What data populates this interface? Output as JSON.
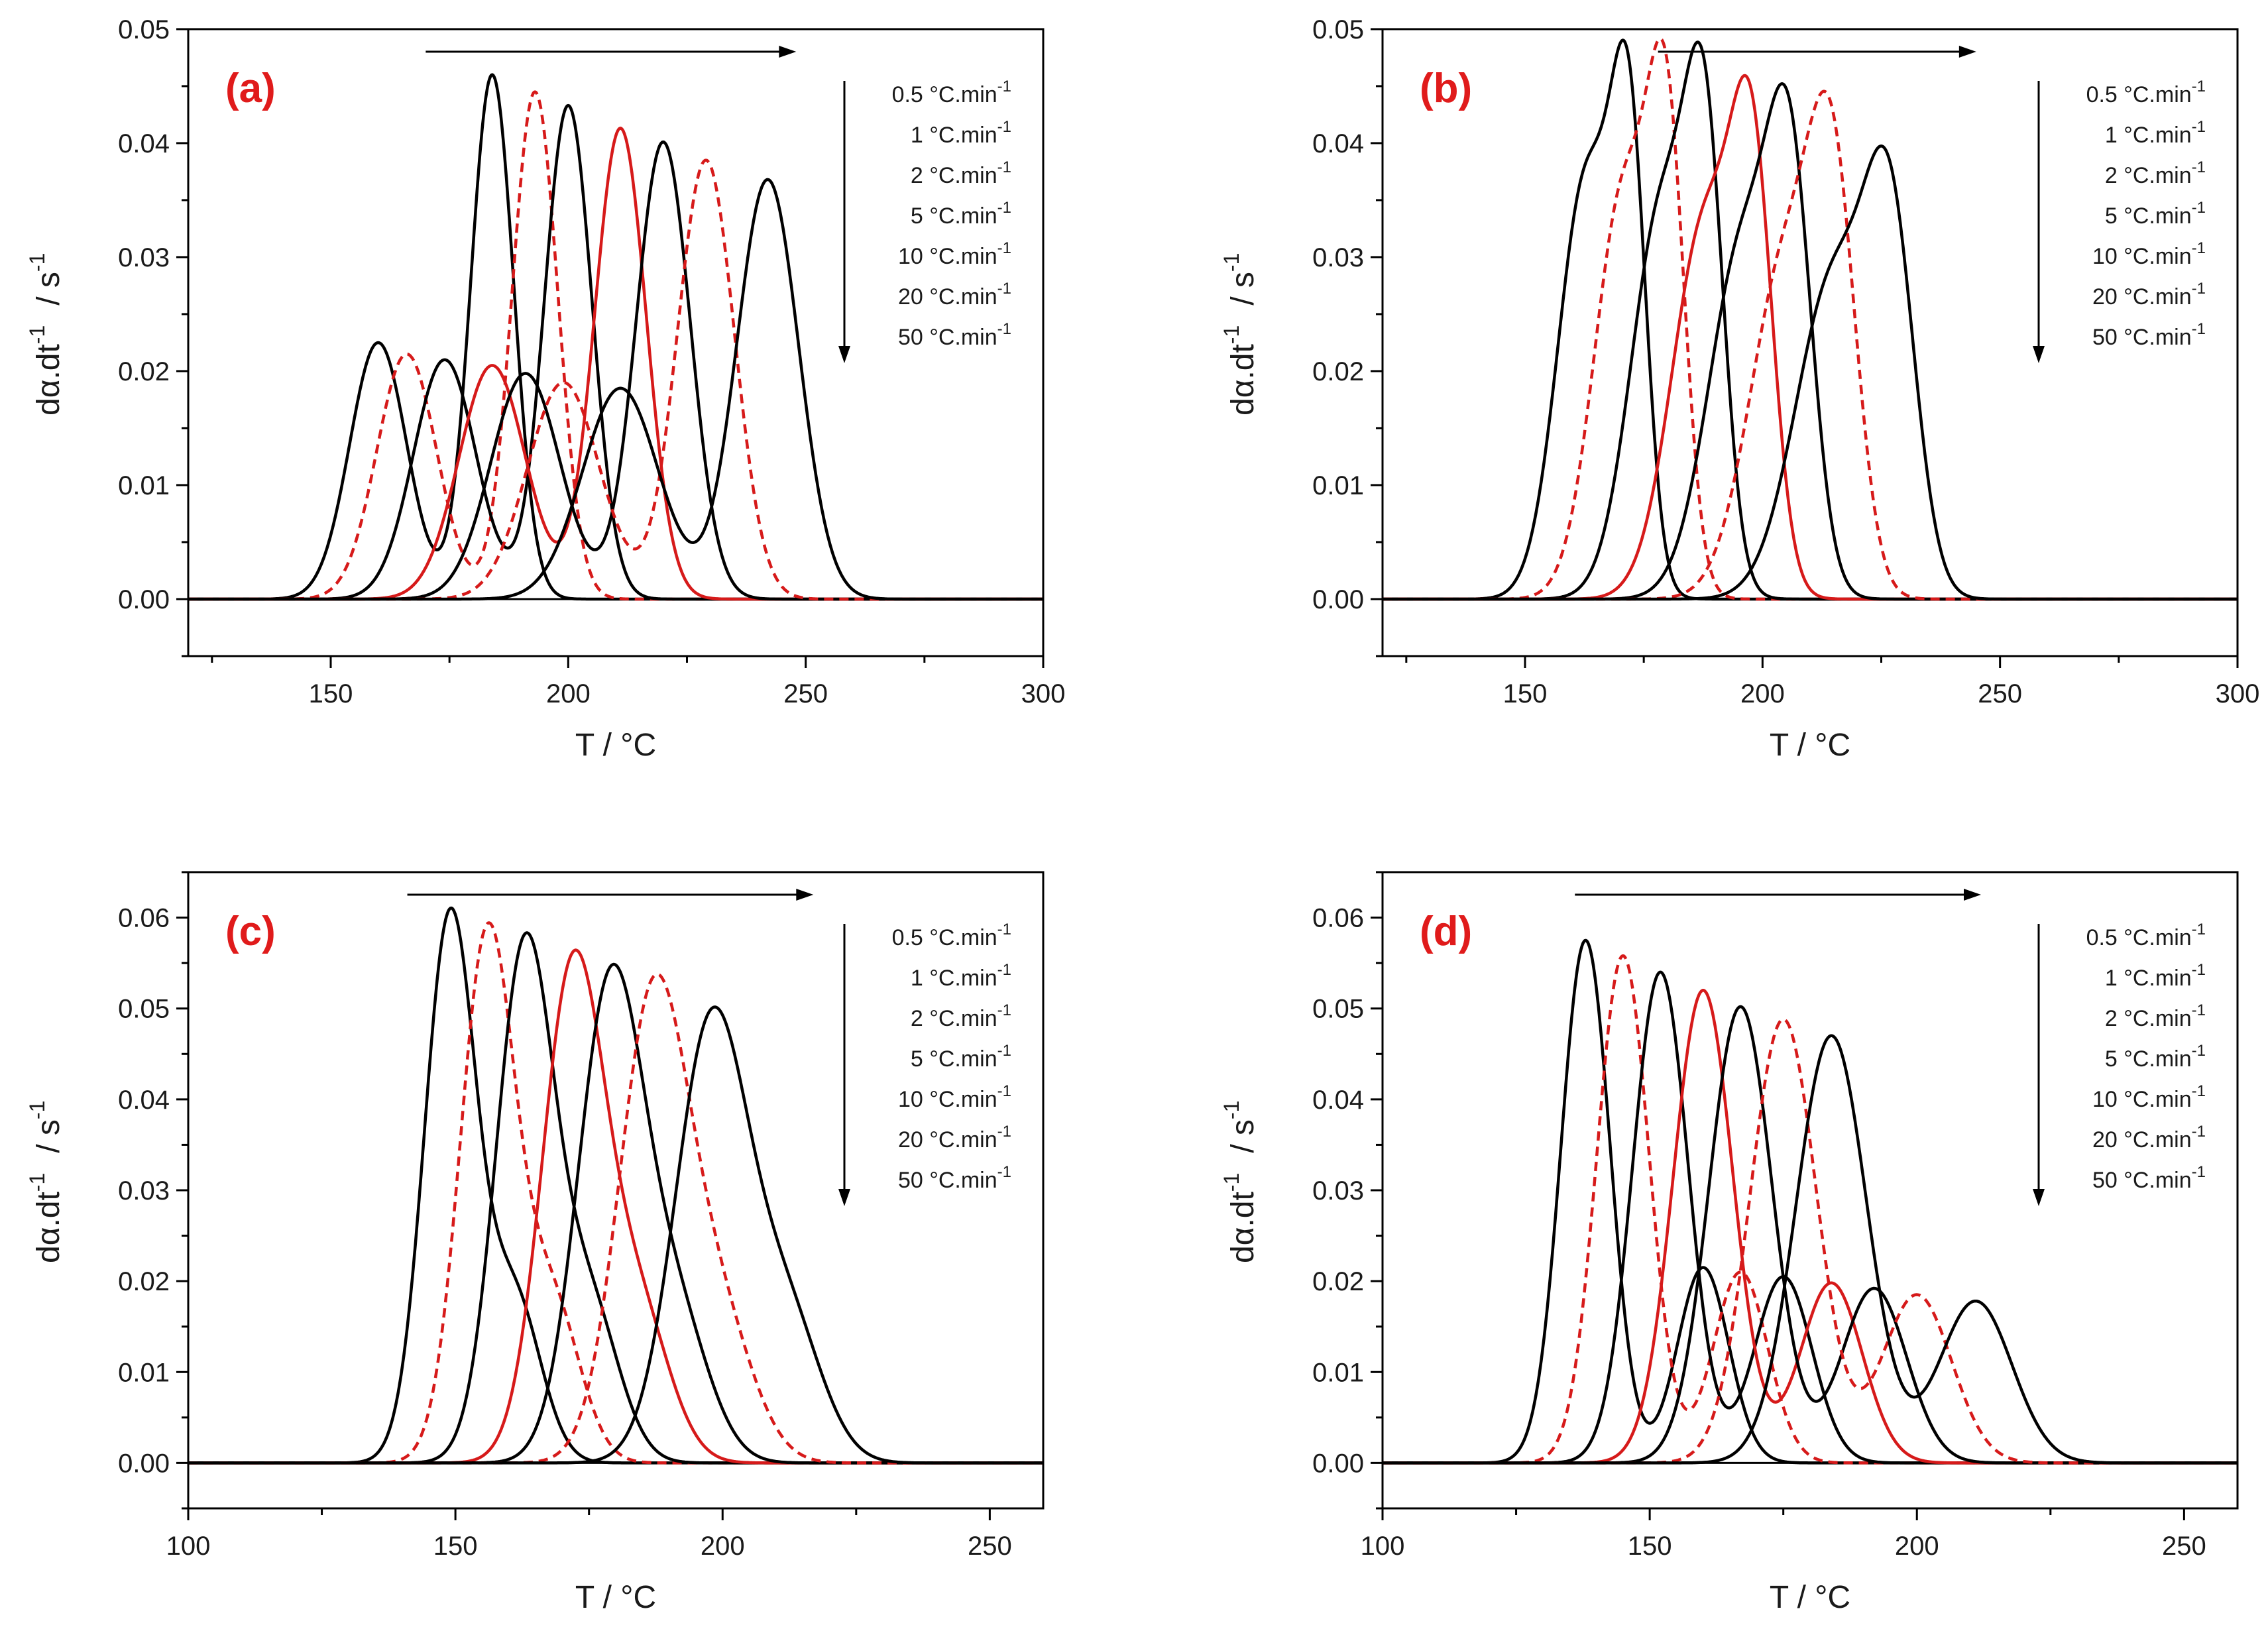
{
  "colors": {
    "black": "#000000",
    "red": "#d61a1a",
    "panel_label": "#e01b1b"
  },
  "chart_data": [
    {
      "type": "line",
      "panel_label": "(a)",
      "xlabel": "T   /   °C",
      "ylabel": "dα.dt",
      "ylabel_exp": "-1",
      "ylabel_unit": "/   s",
      "ylabel_unit_exp": "-1",
      "xlim": [
        120,
        300
      ],
      "ylim": [
        -0.005,
        0.05
      ],
      "xticks": [
        150,
        200,
        250,
        300
      ],
      "xtick_labels": [
        "150",
        "200",
        "250",
        "300"
      ],
      "yticks": [
        0,
        0.01,
        0.02,
        0.03,
        0.04,
        0.05
      ],
      "ytick_labels": [
        "0.00",
        "0.01",
        "0.02",
        "0.03",
        "0.04",
        "0.05"
      ],
      "arrow_x_range": [
        170,
        248
      ],
      "legend": {
        "entries": [
          "0.5 °C.min",
          "1 °C.min",
          "2 °C.min",
          "5 °C.min",
          "10 °C.min",
          "20 °C.min",
          "50 °C.min"
        ],
        "exponent": "-1"
      },
      "series": [
        {
          "name": "0.5 °C.min-1",
          "color": "black",
          "dash": false,
          "peaks": [
            {
              "h": 0.0225,
              "c": 160,
              "w": 6
            },
            {
              "h": 0.046,
              "c": 184,
              "w": 4.5
            }
          ]
        },
        {
          "name": "1 °C.min-1",
          "color": "red",
          "dash": true,
          "peaks": [
            {
              "h": 0.0215,
              "c": 166,
              "w": 6.3
            },
            {
              "h": 0.0445,
              "c": 193,
              "w": 4.8
            }
          ]
        },
        {
          "name": "2 °C.min-1",
          "color": "black",
          "dash": false,
          "peaks": [
            {
              "h": 0.021,
              "c": 174,
              "w": 6.6
            },
            {
              "h": 0.0433,
              "c": 200,
              "w": 5
            }
          ]
        },
        {
          "name": "5 °C.min-1",
          "color": "red",
          "dash": false,
          "peaks": [
            {
              "h": 0.0205,
              "c": 184,
              "w": 7
            },
            {
              "h": 0.0413,
              "c": 211,
              "w": 5.4
            }
          ]
        },
        {
          "name": "10 °C.min-1",
          "color": "black",
          "dash": false,
          "peaks": [
            {
              "h": 0.0198,
              "c": 191,
              "w": 7.3
            },
            {
              "h": 0.0401,
              "c": 220,
              "w": 5.7
            }
          ]
        },
        {
          "name": "20 °C.min-1",
          "color": "red",
          "dash": true,
          "peaks": [
            {
              "h": 0.019,
              "c": 199,
              "w": 7.6
            },
            {
              "h": 0.0385,
              "c": 229,
              "w": 6
            }
          ]
        },
        {
          "name": "50 °C.min-1",
          "color": "black",
          "dash": false,
          "peaks": [
            {
              "h": 0.0185,
              "c": 211,
              "w": 8
            },
            {
              "h": 0.0368,
              "c": 242,
              "w": 6.5
            }
          ]
        }
      ]
    },
    {
      "type": "line",
      "panel_label": "(b)",
      "xlabel": "T   /   °C",
      "ylabel": "dα.dt",
      "ylabel_exp": "-1",
      "ylabel_unit": "/   s",
      "ylabel_unit_exp": "-1",
      "xlim": [
        120,
        300
      ],
      "ylim": [
        -0.005,
        0.05
      ],
      "xticks": [
        150,
        200,
        250,
        300
      ],
      "xtick_labels": [
        "150",
        "200",
        "250",
        "300"
      ],
      "yticks": [
        0,
        0.01,
        0.02,
        0.03,
        0.04,
        0.05
      ],
      "ytick_labels": [
        "0.00",
        "0.01",
        "0.02",
        "0.03",
        "0.04",
        "0.05"
      ],
      "arrow_x_range": [
        178,
        245
      ],
      "legend": {
        "entries": [
          "0.5 °C.min",
          "1 °C.min",
          "2 °C.min",
          "5 °C.min",
          "10 °C.min",
          "20 °C.min",
          "50 °C.min"
        ],
        "exponent": "-1"
      },
      "series": [
        {
          "name": "0.5 °C.min-1",
          "color": "black",
          "dash": false,
          "peaks": [
            {
              "h": 0.037,
              "c": 163,
              "w": 6
            },
            {
              "h": 0.035,
              "c": 172,
              "w": 3.6
            }
          ]
        },
        {
          "name": "1 °C.min-1",
          "color": "red",
          "dash": true,
          "peaks": [
            {
              "h": 0.036,
              "c": 171,
              "w": 6.3
            },
            {
              "h": 0.034,
              "c": 180,
              "w": 3.8
            }
          ]
        },
        {
          "name": "2 °C.min-1",
          "color": "black",
          "dash": false,
          "peaks": [
            {
              "h": 0.0345,
              "c": 179,
              "w": 6.6
            },
            {
              "h": 0.033,
              "c": 188,
              "w": 4
            }
          ]
        },
        {
          "name": "5 °C.min-1",
          "color": "red",
          "dash": false,
          "peaks": [
            {
              "h": 0.033,
              "c": 188,
              "w": 7
            },
            {
              "h": 0.032,
              "c": 198,
              "w": 4.3
            }
          ]
        },
        {
          "name": "10 °C.min-1",
          "color": "black",
          "dash": false,
          "peaks": [
            {
              "h": 0.031,
              "c": 196,
              "w": 7.3
            },
            {
              "h": 0.031,
              "c": 206,
              "w": 4.6
            }
          ]
        },
        {
          "name": "20 °C.min-1",
          "color": "red",
          "dash": true,
          "peaks": [
            {
              "h": 0.0295,
              "c": 205,
              "w": 7.6
            },
            {
              "h": 0.03,
              "c": 215,
              "w": 4.9
            }
          ]
        },
        {
          "name": "50 °C.min-1",
          "color": "black",
          "dash": false,
          "peaks": [
            {
              "h": 0.028,
              "c": 215,
              "w": 8
            },
            {
              "h": 0.029,
              "c": 227,
              "w": 5.2
            }
          ]
        }
      ]
    },
    {
      "type": "line",
      "panel_label": "(c)",
      "xlabel": "T   /   °C",
      "ylabel": "dα.dt",
      "ylabel_exp": "-1",
      "ylabel_unit": "/   s",
      "ylabel_unit_exp": "-1",
      "xlim": [
        100,
        260
      ],
      "ylim": [
        -0.005,
        0.065
      ],
      "xticks": [
        100,
        150,
        200,
        250
      ],
      "xtick_labels": [
        "100",
        "150",
        "200",
        "250"
      ],
      "yticks": [
        0,
        0.01,
        0.02,
        0.03,
        0.04,
        0.05,
        0.06
      ],
      "ytick_labels": [
        "0.00",
        "0.01",
        "0.02",
        "0.03",
        "0.04",
        "0.05",
        "0.06"
      ],
      "arrow_x_range": [
        141,
        217
      ],
      "legend": {
        "entries": [
          "0.5 °C.min",
          "1 °C.min",
          "2 °C.min",
          "5 °C.min",
          "10 °C.min",
          "20 °C.min",
          "50 °C.min"
        ],
        "exponent": "-1"
      },
      "series": [
        {
          "name": "0.5 °C.min-1",
          "color": "black",
          "dash": false,
          "peaks": [
            {
              "h": 0.06,
              "c": 149,
              "w": 4.8
            },
            {
              "h": 0.018,
              "c": 161,
              "w": 5
            }
          ]
        },
        {
          "name": "1 °C.min-1",
          "color": "red",
          "dash": true,
          "peaks": [
            {
              "h": 0.058,
              "c": 156,
              "w": 5.1
            },
            {
              "h": 0.0175,
              "c": 168,
              "w": 5.3
            }
          ]
        },
        {
          "name": "2 °C.min-1",
          "color": "black",
          "dash": false,
          "peaks": [
            {
              "h": 0.0565,
              "c": 163,
              "w": 5.4
            },
            {
              "h": 0.017,
              "c": 175,
              "w": 5.6
            }
          ]
        },
        {
          "name": "5 °C.min-1",
          "color": "red",
          "dash": false,
          "peaks": [
            {
              "h": 0.054,
              "c": 172,
              "w": 5.8
            },
            {
              "h": 0.0165,
              "c": 184,
              "w": 6
            }
          ]
        },
        {
          "name": "10 °C.min-1",
          "color": "black",
          "dash": false,
          "peaks": [
            {
              "h": 0.052,
              "c": 179,
              "w": 6.1
            },
            {
              "h": 0.016,
              "c": 191,
              "w": 6.3
            }
          ]
        },
        {
          "name": "20 °C.min-1",
          "color": "red",
          "dash": true,
          "peaks": [
            {
              "h": 0.0505,
              "c": 187,
              "w": 6.4
            },
            {
              "h": 0.0155,
              "c": 199,
              "w": 6.6
            }
          ]
        },
        {
          "name": "50 °C.min-1",
          "color": "black",
          "dash": false,
          "peaks": [
            {
              "h": 0.0485,
              "c": 198,
              "w": 6.8
            },
            {
              "h": 0.0155,
              "c": 212,
              "w": 6.5
            }
          ]
        }
      ]
    },
    {
      "type": "line",
      "panel_label": "(d)",
      "xlabel": "T   /   °C",
      "ylabel": "dα.dt",
      "ylabel_exp": "-1",
      "ylabel_unit": "/   s",
      "ylabel_unit_exp": "-1",
      "xlim": [
        100,
        260
      ],
      "ylim": [
        -0.005,
        0.065
      ],
      "xticks": [
        100,
        150,
        200,
        250
      ],
      "xtick_labels": [
        "100",
        "150",
        "200",
        "250"
      ],
      "yticks": [
        0,
        0.01,
        0.02,
        0.03,
        0.04,
        0.05,
        0.06
      ],
      "ytick_labels": [
        "0.00",
        "0.01",
        "0.02",
        "0.03",
        "0.04",
        "0.05",
        "0.06"
      ],
      "arrow_x_range": [
        136,
        212
      ],
      "legend": {
        "entries": [
          "0.5 °C.min",
          "1 °C.min",
          "2 °C.min",
          "5 °C.min",
          "10 °C.min",
          "20 °C.min",
          "50 °C.min"
        ],
        "exponent": "-1"
      },
      "series": [
        {
          "name": "0.5 °C.min-1",
          "color": "black",
          "dash": false,
          "peaks": [
            {
              "h": 0.0575,
              "c": 138,
              "w": 4.6
            },
            {
              "h": 0.0215,
              "c": 160,
              "w": 4.8
            }
          ]
        },
        {
          "name": "1 °C.min-1",
          "color": "red",
          "dash": true,
          "peaks": [
            {
              "h": 0.0558,
              "c": 145,
              "w": 4.9
            },
            {
              "h": 0.021,
              "c": 167,
              "w": 5.1
            }
          ]
        },
        {
          "name": "2 °C.min-1",
          "color": "black",
          "dash": false,
          "peaks": [
            {
              "h": 0.054,
              "c": 152,
              "w": 5.2
            },
            {
              "h": 0.0205,
              "c": 175,
              "w": 5.4
            }
          ]
        },
        {
          "name": "5 °C.min-1",
          "color": "red",
          "dash": false,
          "peaks": [
            {
              "h": 0.052,
              "c": 160,
              "w": 5.6
            },
            {
              "h": 0.0198,
              "c": 184,
              "w": 5.8
            }
          ]
        },
        {
          "name": "10 °C.min-1",
          "color": "black",
          "dash": false,
          "peaks": [
            {
              "h": 0.0502,
              "c": 167,
              "w": 5.9
            },
            {
              "h": 0.0192,
              "c": 192,
              "w": 6.1
            }
          ]
        },
        {
          "name": "20 °C.min-1",
          "color": "red",
          "dash": true,
          "peaks": [
            {
              "h": 0.0488,
              "c": 175,
              "w": 6.2
            },
            {
              "h": 0.0185,
              "c": 200,
              "w": 6.5
            }
          ]
        },
        {
          "name": "50 °C.min-1",
          "color": "black",
          "dash": false,
          "peaks": [
            {
              "h": 0.047,
              "c": 184,
              "w": 6.6
            },
            {
              "h": 0.0178,
              "c": 211,
              "w": 6.8
            }
          ]
        }
      ]
    }
  ]
}
